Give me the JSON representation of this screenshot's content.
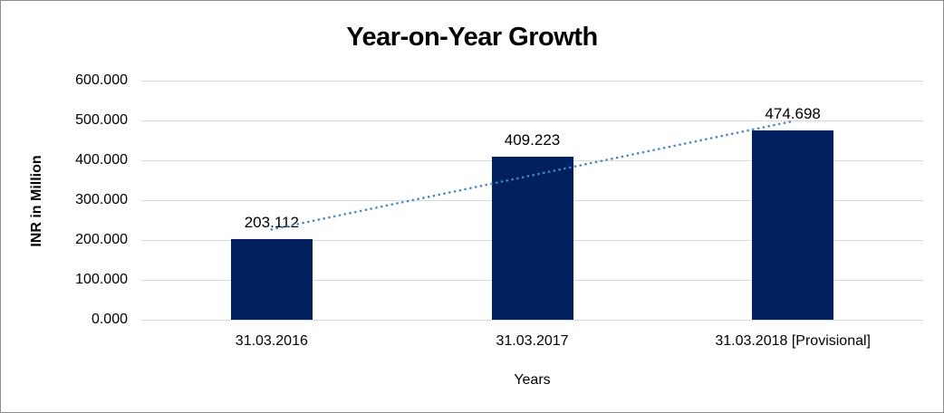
{
  "figure": {
    "background": "#ffffff",
    "border_color": "#8c8c8c"
  },
  "chart_data": {
    "type": "bar",
    "title": "Year-on-Year Growth",
    "categories": [
      "31.03.2016",
      "31.03.2017",
      "31.03.2018 [Provisional]"
    ],
    "values": [
      203.112,
      409.223,
      474.698
    ],
    "value_labels": [
      "203.112",
      "409.223",
      "474.698"
    ],
    "xlabel": "Years",
    "ylabel": "INR in Million",
    "ylim": [
      0,
      600
    ],
    "ytick_step": 100,
    "ytick_labels": [
      "0.000",
      "100.000",
      "200.000",
      "300.000",
      "400.000",
      "500.000",
      "600.000"
    ],
    "grid": true,
    "legend": "none",
    "bar_color": "#002060",
    "gridline_color": "#d9d9d9",
    "trendline": {
      "type": "linear_regression",
      "style": "dotted",
      "color": "#4a86c8"
    }
  }
}
